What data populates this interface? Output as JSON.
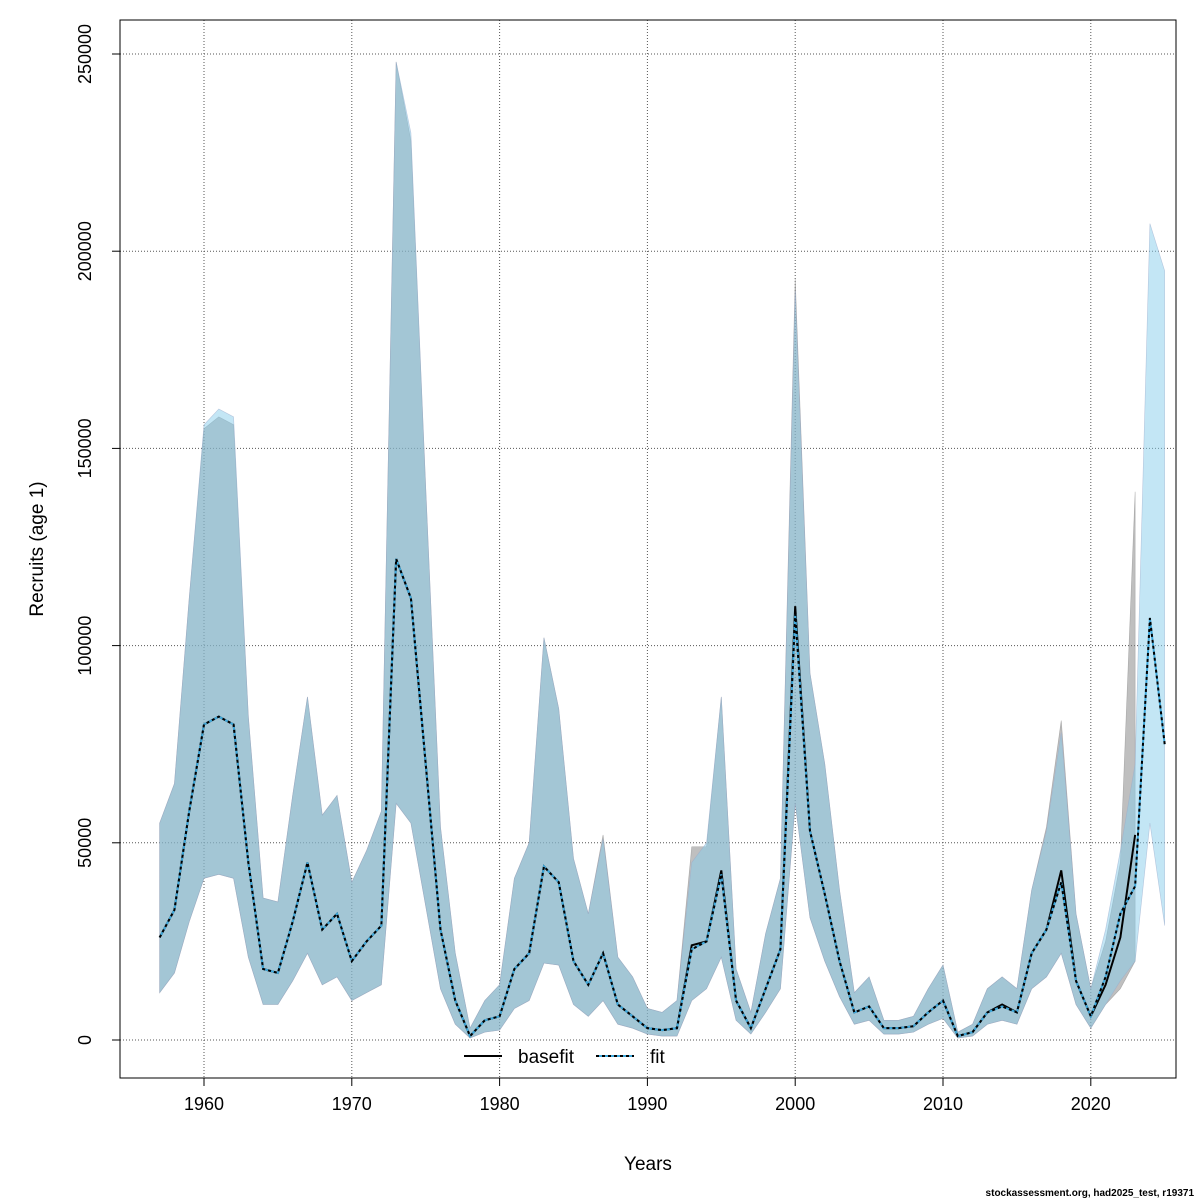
{
  "chart_data": {
    "type": "area",
    "xlabel": "Years",
    "ylabel": "Recruits (age 1)",
    "xlim": [
      1955,
      2026
    ],
    "ylim": [
      -10000,
      260000
    ],
    "xticks": [
      "1960",
      "1970",
      "1980",
      "1990",
      "2000",
      "2010",
      "2020"
    ],
    "yticks": [
      "0",
      "50000",
      "100000",
      "150000",
      "200000",
      "250000"
    ],
    "grid": true,
    "legend": {
      "position": "bottom",
      "entries": [
        "basefit",
        "fit"
      ]
    },
    "footer": "stockassessment.org, had2025_test, r19371",
    "colors": {
      "basefit_band": "#808080",
      "fit_band": "#87ceeb",
      "fit_line": "#3fa9dc",
      "basefit_line": "#000000"
    },
    "series": [
      {
        "name": "basefit",
        "start_year": 1957,
        "values": [
          26000,
          33000,
          58000,
          80000,
          82000,
          80000,
          45000,
          18000,
          17000,
          30000,
          45000,
          28000,
          32000,
          20000,
          25000,
          29000,
          122000,
          112000,
          70000,
          28000,
          10000,
          1000,
          5000,
          6000,
          18000,
          22000,
          44000,
          40000,
          20000,
          14000,
          22000,
          9000,
          6000,
          3000,
          2500,
          3000,
          24000,
          25000,
          43000,
          10000,
          3000,
          13000,
          23000,
          110000,
          53000,
          37000,
          20000,
          7000,
          8500,
          3000,
          3000,
          3500,
          7000,
          10000,
          1000,
          2000,
          7000,
          9000,
          7000,
          22000,
          28000,
          43000,
          15000,
          6000,
          14000,
          26000,
          52000
        ],
        "upper": [
          55000,
          65000,
          112000,
          155000,
          158000,
          156000,
          82000,
          36000,
          35000,
          62000,
          87000,
          57000,
          62000,
          40000,
          48000,
          58000,
          248000,
          228000,
          140000,
          54000,
          22000,
          3000,
          10000,
          14000,
          41000,
          50000,
          102000,
          84000,
          46000,
          32000,
          52000,
          21000,
          16000,
          8000,
          7000,
          10000,
          49000,
          49000,
          87000,
          18000,
          7000,
          27000,
          41000,
          193000,
          93000,
          70000,
          38000,
          12000,
          16000,
          5000,
          5000,
          6000,
          13000,
          19000,
          2000,
          4000,
          13000,
          16000,
          13000,
          38000,
          54000,
          81000,
          32000,
          13000,
          25000,
          45000,
          139000
        ],
        "lower": [
          12000,
          17000,
          30000,
          41000,
          42000,
          41000,
          21000,
          9000,
          9000,
          15000,
          22000,
          14000,
          16000,
          10000,
          12000,
          14000,
          60000,
          55000,
          34000,
          13000,
          4000,
          500,
          2000,
          2500,
          8000,
          10000,
          19500,
          19000,
          9000,
          6000,
          10000,
          4000,
          3000,
          1500,
          1000,
          1000,
          10000,
          13000,
          21000,
          5000,
          1500,
          7000,
          13000,
          60000,
          31000,
          20000,
          11000,
          4000,
          5000,
          1500,
          1500,
          2000,
          4000,
          5500,
          500,
          1000,
          4000,
          5000,
          4000,
          13000,
          16000,
          22000,
          9000,
          3000,
          9000,
          13000,
          20000
        ]
      },
      {
        "name": "fit",
        "start_year": 1957,
        "values": [
          26000,
          33000,
          58000,
          80000,
          82000,
          80000,
          45000,
          18000,
          17000,
          30000,
          45000,
          28000,
          32000,
          20000,
          25000,
          29000,
          122000,
          112000,
          70000,
          28000,
          10000,
          1000,
          5000,
          6000,
          18000,
          22000,
          44000,
          40000,
          20000,
          14000,
          22000,
          9000,
          6000,
          3000,
          2500,
          3000,
          23000,
          25000,
          42000,
          10000,
          3000,
          13000,
          23000,
          108000,
          53000,
          37000,
          20000,
          7000,
          8500,
          3000,
          3000,
          3500,
          7000,
          10000,
          1000,
          2000,
          7000,
          8500,
          7000,
          22000,
          28000,
          40000,
          15000,
          6000,
          16000,
          32000,
          39000,
          107000,
          75000
        ],
        "upper": [
          55000,
          65000,
          112000,
          156000,
          160000,
          158000,
          82000,
          36000,
          35000,
          62000,
          87000,
          57000,
          62000,
          40000,
          48000,
          58000,
          248000,
          230000,
          140000,
          54000,
          22000,
          3000,
          10000,
          14000,
          41000,
          50000,
          102000,
          84000,
          46000,
          32000,
          51000,
          21000,
          16000,
          8000,
          7000,
          10000,
          45000,
          50000,
          87000,
          18000,
          7000,
          27000,
          41000,
          190000,
          93000,
          70000,
          38000,
          12000,
          16000,
          5000,
          5000,
          6000,
          13000,
          19000,
          2000,
          4000,
          13000,
          16000,
          13000,
          38000,
          53000,
          78000,
          32000,
          13000,
          28000,
          48000,
          70000,
          207000,
          195000
        ],
        "lower": [
          12000,
          17000,
          30000,
          41000,
          42000,
          41000,
          21000,
          9000,
          9000,
          15000,
          22000,
          14000,
          16000,
          10000,
          12000,
          14000,
          60000,
          55000,
          34000,
          13000,
          4000,
          500,
          2000,
          2500,
          8000,
          10000,
          19500,
          19000,
          9000,
          6000,
          10000,
          4000,
          3000,
          1500,
          1000,
          1000,
          10000,
          13000,
          21000,
          5000,
          1500,
          7000,
          13000,
          60000,
          31000,
          20000,
          11000,
          4000,
          5000,
          1500,
          1500,
          2000,
          4000,
          5500,
          500,
          1000,
          4000,
          5000,
          4000,
          13000,
          16000,
          22000,
          9000,
          3000,
          9000,
          15000,
          20000,
          55000,
          29000
        ]
      }
    ]
  }
}
